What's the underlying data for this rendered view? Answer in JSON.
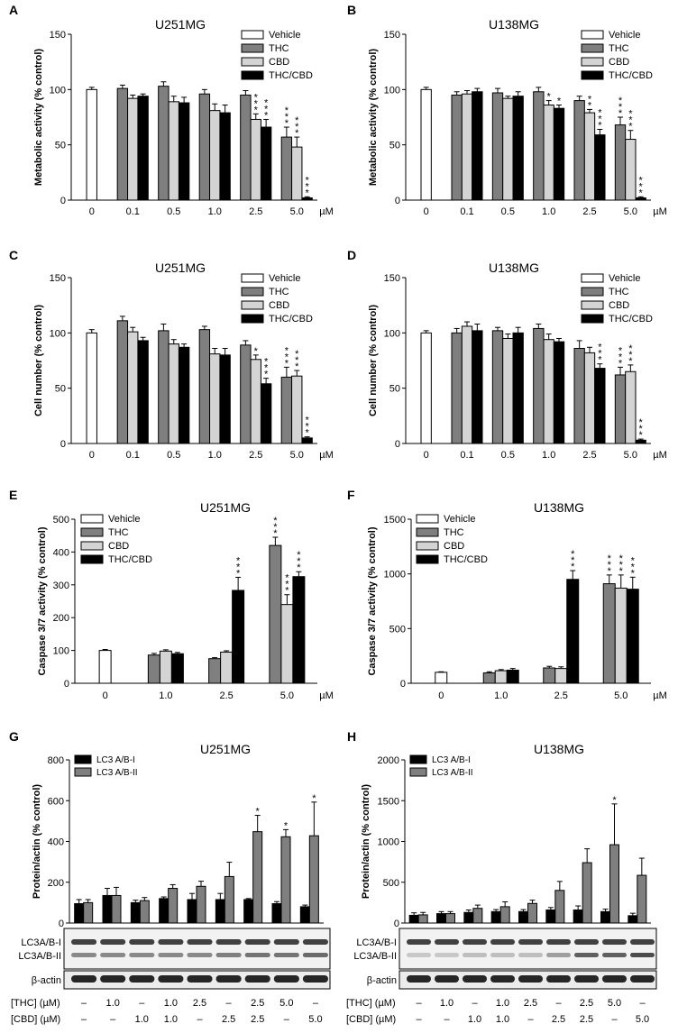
{
  "legend4": [
    "Vehicle",
    "THC",
    "CBD",
    "THC/CBD"
  ],
  "unit": "µM",
  "colors": {
    "Vehicle": "#ffffff",
    "THC": "#7f7f7f",
    "CBD": "#d4d4d4",
    "THC/CBD": "#000000",
    "LC3 A/B-I": "#000000",
    "LC3 A/B-II": "#7f7f7f"
  },
  "chart_data": [
    {
      "panel": "A",
      "type": "bar",
      "title": "U251MG",
      "ylabel": "Metabolic activity (% control)",
      "ylim": [
        0,
        150
      ],
      "yticks": [
        0,
        50,
        100,
        150
      ],
      "groups": [
        {
          "label": "0",
          "bars": [
            {
              "s": "Vehicle",
              "v": 100,
              "e": 2
            }
          ]
        },
        {
          "label": "0.1",
          "bars": [
            {
              "s": "THC",
              "v": 101,
              "e": 3
            },
            {
              "s": "CBD",
              "v": 92,
              "e": 3
            },
            {
              "s": "THC/CBD",
              "v": 94,
              "e": 2
            }
          ]
        },
        {
          "label": "0.5",
          "bars": [
            {
              "s": "THC",
              "v": 103,
              "e": 4
            },
            {
              "s": "CBD",
              "v": 89,
              "e": 5
            },
            {
              "s": "THC/CBD",
              "v": 88,
              "e": 5
            }
          ]
        },
        {
          "label": "1.0",
          "bars": [
            {
              "s": "THC",
              "v": 96,
              "e": 4
            },
            {
              "s": "CBD",
              "v": 81,
              "e": 6
            },
            {
              "s": "THC/CBD",
              "v": 79,
              "e": 7
            }
          ]
        },
        {
          "label": "2.5",
          "bars": [
            {
              "s": "THC",
              "v": 95,
              "e": 4
            },
            {
              "s": "CBD",
              "v": 73,
              "e": 5,
              "sig": "***"
            },
            {
              "s": "THC/CBD",
              "v": 66,
              "e": 7,
              "sig": "***"
            }
          ]
        },
        {
          "label": "5.0",
          "bars": [
            {
              "s": "THC",
              "v": 57,
              "e": 9,
              "sig": "***"
            },
            {
              "s": "CBD",
              "v": 48,
              "e": 9,
              "sig": "***"
            },
            {
              "s": "THC/CBD",
              "v": 2,
              "e": 1,
              "sig": "***"
            }
          ]
        }
      ]
    },
    {
      "panel": "B",
      "type": "bar",
      "title": "U138MG",
      "ylabel": "Metabolic activity (% control)",
      "ylim": [
        0,
        150
      ],
      "yticks": [
        0,
        50,
        100,
        150
      ],
      "groups": [
        {
          "label": "0",
          "bars": [
            {
              "s": "Vehicle",
              "v": 100,
              "e": 2
            }
          ]
        },
        {
          "label": "0.1",
          "bars": [
            {
              "s": "THC",
              "v": 95,
              "e": 3
            },
            {
              "s": "CBD",
              "v": 96,
              "e": 3
            },
            {
              "s": "THC/CBD",
              "v": 98,
              "e": 3
            }
          ]
        },
        {
          "label": "0.5",
          "bars": [
            {
              "s": "THC",
              "v": 97,
              "e": 4
            },
            {
              "s": "CBD",
              "v": 92,
              "e": 2
            },
            {
              "s": "THC/CBD",
              "v": 94,
              "e": 4
            }
          ]
        },
        {
          "label": "1.0",
          "bars": [
            {
              "s": "THC",
              "v": 98,
              "e": 4
            },
            {
              "s": "CBD",
              "v": 86,
              "e": 4,
              "sig": "*"
            },
            {
              "s": "THC/CBD",
              "v": 83,
              "e": 3,
              "sig": "*"
            }
          ]
        },
        {
          "label": "2.5",
          "bars": [
            {
              "s": "THC",
              "v": 90,
              "e": 4
            },
            {
              "s": "CBD",
              "v": 79,
              "e": 3,
              "sig": "**"
            },
            {
              "s": "THC/CBD",
              "v": 59,
              "e": 5,
              "sig": "***"
            }
          ]
        },
        {
          "label": "5.0",
          "bars": [
            {
              "s": "THC",
              "v": 68,
              "e": 7,
              "sig": "***"
            },
            {
              "s": "CBD",
              "v": 55,
              "e": 8,
              "sig": "***"
            },
            {
              "s": "THC/CBD",
              "v": 2,
              "e": 1,
              "sig": "***"
            }
          ]
        }
      ]
    },
    {
      "panel": "C",
      "type": "bar",
      "title": "U251MG",
      "ylabel": "Cell number (% control)",
      "ylim": [
        0,
        150
      ],
      "yticks": [
        0,
        50,
        100,
        150
      ],
      "groups": [
        {
          "label": "0",
          "bars": [
            {
              "s": "Vehicle",
              "v": 100,
              "e": 3
            }
          ]
        },
        {
          "label": "0.1",
          "bars": [
            {
              "s": "THC",
              "v": 111,
              "e": 4
            },
            {
              "s": "CBD",
              "v": 101,
              "e": 4
            },
            {
              "s": "THC/CBD",
              "v": 93,
              "e": 3
            }
          ]
        },
        {
          "label": "0.5",
          "bars": [
            {
              "s": "THC",
              "v": 102,
              "e": 6
            },
            {
              "s": "CBD",
              "v": 90,
              "e": 4
            },
            {
              "s": "THC/CBD",
              "v": 87,
              "e": 3
            }
          ]
        },
        {
          "label": "1.0",
          "bars": [
            {
              "s": "THC",
              "v": 103,
              "e": 3
            },
            {
              "s": "CBD",
              "v": 81,
              "e": 5
            },
            {
              "s": "THC/CBD",
              "v": 80,
              "e": 6
            }
          ]
        },
        {
          "label": "2.5",
          "bars": [
            {
              "s": "THC",
              "v": 89,
              "e": 4
            },
            {
              "s": "CBD",
              "v": 76,
              "e": 4,
              "sig": "*"
            },
            {
              "s": "THC/CBD",
              "v": 54,
              "e": 5,
              "sig": "***"
            }
          ]
        },
        {
          "label": "5.0",
          "bars": [
            {
              "s": "THC",
              "v": 60,
              "e": 9,
              "sig": "***"
            },
            {
              "s": "CBD",
              "v": 61,
              "e": 5,
              "sig": "***"
            },
            {
              "s": "THC/CBD",
              "v": 5,
              "e": 1,
              "sig": "***"
            }
          ]
        }
      ]
    },
    {
      "panel": "D",
      "type": "bar",
      "title": "U138MG",
      "ylabel": "Cell number (% control)",
      "ylim": [
        0,
        150
      ],
      "yticks": [
        0,
        50,
        100,
        150
      ],
      "groups": [
        {
          "label": "0",
          "bars": [
            {
              "s": "Vehicle",
              "v": 100,
              "e": 2
            }
          ]
        },
        {
          "label": "0.1",
          "bars": [
            {
              "s": "THC",
              "v": 100,
              "e": 4
            },
            {
              "s": "CBD",
              "v": 106,
              "e": 4
            },
            {
              "s": "THC/CBD",
              "v": 102,
              "e": 6
            }
          ]
        },
        {
          "label": "0.5",
          "bars": [
            {
              "s": "THC",
              "v": 102,
              "e": 3
            },
            {
              "s": "CBD",
              "v": 95,
              "e": 4
            },
            {
              "s": "THC/CBD",
              "v": 100,
              "e": 5
            }
          ]
        },
        {
          "label": "1.0",
          "bars": [
            {
              "s": "THC",
              "v": 104,
              "e": 4
            },
            {
              "s": "CBD",
              "v": 94,
              "e": 5
            },
            {
              "s": "THC/CBD",
              "v": 92,
              "e": 3
            }
          ]
        },
        {
          "label": "2.5",
          "bars": [
            {
              "s": "THC",
              "v": 86,
              "e": 7
            },
            {
              "s": "CBD",
              "v": 82,
              "e": 5
            },
            {
              "s": "THC/CBD",
              "v": 68,
              "e": 4,
              "sig": "***"
            }
          ]
        },
        {
          "label": "5.0",
          "bars": [
            {
              "s": "THC",
              "v": 62,
              "e": 7,
              "sig": "***"
            },
            {
              "s": "CBD",
              "v": 65,
              "e": 6,
              "sig": "***"
            },
            {
              "s": "THC/CBD",
              "v": 3,
              "e": 1,
              "sig": "***"
            }
          ]
        }
      ]
    },
    {
      "panel": "E",
      "type": "bar",
      "title": "U251MG",
      "ylabel": "Caspase 3/7 activity (% control)",
      "ylim": [
        0,
        500
      ],
      "yticks": [
        0,
        100,
        200,
        300,
        400,
        500
      ],
      "groups": [
        {
          "label": "0",
          "bars": [
            {
              "s": "Vehicle",
              "v": 100,
              "e": 3
            }
          ]
        },
        {
          "label": "1.0",
          "bars": [
            {
              "s": "THC",
              "v": 86,
              "e": 5
            },
            {
              "s": "CBD",
              "v": 98,
              "e": 4
            },
            {
              "s": "THC/CBD",
              "v": 90,
              "e": 4
            }
          ]
        },
        {
          "label": "2.5",
          "bars": [
            {
              "s": "THC",
              "v": 75,
              "e": 3
            },
            {
              "s": "CBD",
              "v": 95,
              "e": 4
            },
            {
              "s": "THC/CBD",
              "v": 283,
              "e": 40,
              "sig": "***"
            }
          ]
        },
        {
          "label": "5.0",
          "bars": [
            {
              "s": "THC",
              "v": 420,
              "e": 25,
              "sig": "***"
            },
            {
              "s": "CBD",
              "v": 240,
              "e": 30,
              "sig": "***"
            },
            {
              "s": "THC/CBD",
              "v": 325,
              "e": 15,
              "sig": "***"
            }
          ]
        }
      ]
    },
    {
      "panel": "F",
      "type": "bar",
      "title": "U138MG",
      "ylabel": "Caspase 3/7 activity (% control)",
      "ylim": [
        0,
        1500
      ],
      "yticks": [
        0,
        500,
        1000,
        1500
      ],
      "groups": [
        {
          "label": "0",
          "bars": [
            {
              "s": "Vehicle",
              "v": 100,
              "e": 5
            }
          ]
        },
        {
          "label": "1.0",
          "bars": [
            {
              "s": "THC",
              "v": 95,
              "e": 10
            },
            {
              "s": "CBD",
              "v": 115,
              "e": 10
            },
            {
              "s": "THC/CBD",
              "v": 120,
              "e": 15
            }
          ]
        },
        {
          "label": "2.5",
          "bars": [
            {
              "s": "THC",
              "v": 140,
              "e": 15
            },
            {
              "s": "CBD",
              "v": 135,
              "e": 15
            },
            {
              "s": "THC/CBD",
              "v": 950,
              "e": 80,
              "sig": "***"
            }
          ]
        },
        {
          "label": "5.0",
          "bars": [
            {
              "s": "THC",
              "v": 910,
              "e": 80,
              "sig": "***"
            },
            {
              "s": "CBD",
              "v": 870,
              "e": 120,
              "sig": "***"
            },
            {
              "s": "THC/CBD",
              "v": 860,
              "e": 110,
              "sig": "***"
            }
          ]
        }
      ]
    },
    {
      "panel": "G",
      "type": "bar",
      "title": "U251MG",
      "ylabel": "Protein/actin (% control)",
      "ylim": [
        0,
        800
      ],
      "yticks": [
        0,
        200,
        400,
        600,
        800
      ],
      "legend": [
        "LC3 A/B-I",
        "LC3 A/B-II"
      ],
      "pairs": [
        {
          "b1": 95,
          "e1": 20,
          "b2": 100,
          "e2": 15
        },
        {
          "b1": 135,
          "e1": 35,
          "b2": 135,
          "e2": 40
        },
        {
          "b1": 100,
          "e1": 12,
          "b2": 110,
          "e2": 15
        },
        {
          "b1": 120,
          "e1": 8,
          "b2": 170,
          "e2": 18
        },
        {
          "b1": 115,
          "e1": 30,
          "b2": 180,
          "e2": 25
        },
        {
          "b1": 115,
          "e1": 30,
          "b2": 228,
          "e2": 70
        },
        {
          "b1": 115,
          "e1": 5,
          "b2": 448,
          "e2": 80,
          "sig2": "*"
        },
        {
          "b1": 95,
          "e1": 10,
          "b2": 423,
          "e2": 35,
          "sig2": "*"
        },
        {
          "b1": 80,
          "e1": 8,
          "b2": 428,
          "e2": 165,
          "sig2": "*"
        }
      ]
    },
    {
      "panel": "H",
      "type": "bar",
      "title": "U138MG",
      "ylabel": "Protein/actin (% control)",
      "ylim": [
        0,
        2000
      ],
      "yticks": [
        0,
        500,
        1000,
        1500,
        2000
      ],
      "legend": [
        "LC3 A/B-I",
        "LC3 A/B-II"
      ],
      "pairs": [
        {
          "b1": 95,
          "e1": 30,
          "b2": 100,
          "e2": 30
        },
        {
          "b1": 115,
          "e1": 25,
          "b2": 115,
          "e2": 25
        },
        {
          "b1": 130,
          "e1": 30,
          "b2": 180,
          "e2": 40
        },
        {
          "b1": 140,
          "e1": 25,
          "b2": 200,
          "e2": 60
        },
        {
          "b1": 140,
          "e1": 25,
          "b2": 240,
          "e2": 40
        },
        {
          "b1": 160,
          "e1": 30,
          "b2": 400,
          "e2": 110
        },
        {
          "b1": 160,
          "e1": 50,
          "b2": 740,
          "e2": 170
        },
        {
          "b1": 140,
          "e1": 30,
          "b2": 960,
          "e2": 500,
          "sig2": "*"
        },
        {
          "b1": 90,
          "e1": 30,
          "b2": 585,
          "e2": 210
        }
      ]
    }
  ],
  "blot": {
    "labels_top": [
      "LC3A/B-I",
      "LC3A/B-II"
    ],
    "label_actin": "β-actin",
    "thc_label": "[THC] (µM)",
    "cbd_label": "[CBD] (µM)",
    "thc": [
      "–",
      "1.0",
      "–",
      "1.0",
      "2.5",
      "–",
      "2.5",
      "5.0",
      "–"
    ],
    "cbd": [
      "–",
      "–",
      "1.0",
      "1.0",
      "–",
      "2.5",
      "2.5",
      "–",
      "5.0"
    ],
    "band2_G": [
      0.5,
      0.5,
      0.5,
      0.5,
      0.5,
      0.55,
      0.6,
      0.6,
      0.65
    ],
    "band2_H": [
      0.2,
      0.2,
      0.25,
      0.25,
      0.25,
      0.4,
      0.7,
      0.7,
      0.8
    ]
  }
}
